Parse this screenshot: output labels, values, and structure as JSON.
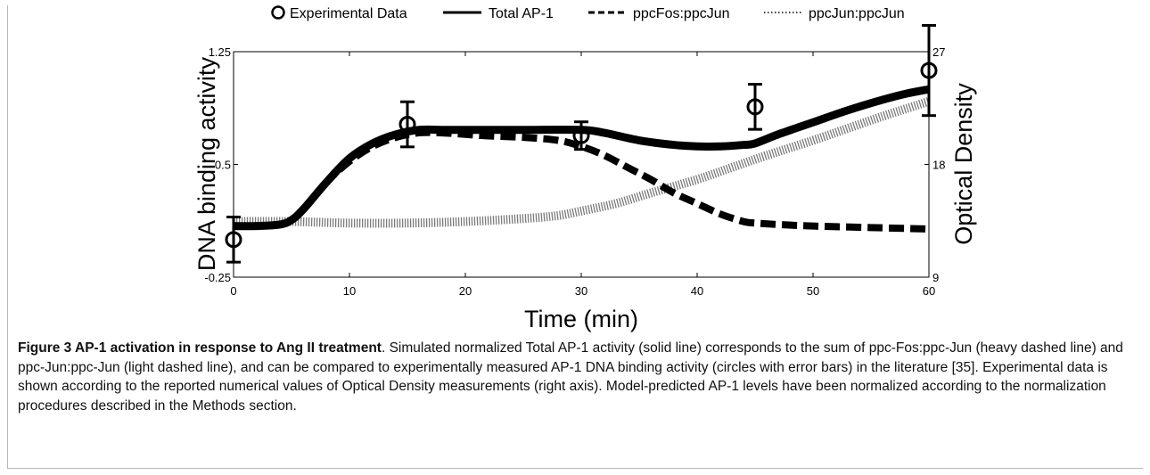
{
  "chart_data": {
    "type": "line",
    "xlabel": "Time (min)",
    "ylabel": "DNA binding activity",
    "y2label": "Optical Density",
    "xlim": [
      0,
      60
    ],
    "ylim": [
      -0.25,
      1.25
    ],
    "y2lim": [
      9,
      27
    ],
    "x_ticks": [
      0,
      10,
      20,
      30,
      40,
      50,
      60
    ],
    "y_ticks": [
      -0.25,
      0.5,
      1.25
    ],
    "y2_ticks": [
      9,
      18,
      27
    ],
    "legend_position": "top",
    "legend": [
      "Experimental Data",
      "Total AP-1",
      "ppcFos:ppcJun",
      "ppcJun:ppcJun"
    ],
    "series": [
      {
        "name": "Total AP-1",
        "style": "solid",
        "x": [
          0,
          2,
          4,
          5,
          6,
          8,
          10,
          12,
          14,
          16,
          18,
          20,
          25,
          30,
          32,
          35,
          38,
          40,
          42,
          44,
          45,
          47,
          50,
          53,
          56,
          58,
          60
        ],
        "y": [
          0.09,
          0.09,
          0.1,
          0.13,
          0.2,
          0.38,
          0.54,
          0.64,
          0.7,
          0.73,
          0.73,
          0.73,
          0.73,
          0.73,
          0.71,
          0.66,
          0.63,
          0.62,
          0.62,
          0.63,
          0.64,
          0.7,
          0.78,
          0.86,
          0.93,
          0.97,
          1.0
        ]
      },
      {
        "name": "ppcFos:ppcJun",
        "style": "dashed",
        "x": [
          0,
          2,
          4,
          5,
          6,
          8,
          10,
          12,
          14,
          16,
          18,
          20,
          22,
          25,
          28,
          30,
          32,
          34,
          36,
          38,
          40,
          42,
          44,
          45,
          47,
          50,
          55,
          60
        ],
        "y": [
          0.09,
          0.09,
          0.1,
          0.13,
          0.2,
          0.38,
          0.52,
          0.62,
          0.68,
          0.71,
          0.71,
          0.7,
          0.69,
          0.68,
          0.66,
          0.62,
          0.56,
          0.48,
          0.4,
          0.31,
          0.24,
          0.17,
          0.12,
          0.11,
          0.1,
          0.09,
          0.08,
          0.07
        ]
      },
      {
        "name": "ppcJun:ppcJun",
        "style": "dotted",
        "x": [
          0,
          5,
          10,
          15,
          20,
          25,
          28,
          30,
          33,
          36,
          40,
          43,
          46,
          50,
          53,
          56,
          58,
          60
        ],
        "y": [
          0.12,
          0.12,
          0.11,
          0.11,
          0.12,
          0.14,
          0.16,
          0.19,
          0.24,
          0.31,
          0.4,
          0.48,
          0.56,
          0.66,
          0.74,
          0.82,
          0.87,
          0.92
        ]
      }
    ],
    "experimental_data": {
      "name": "Experimental Data",
      "axis": "right",
      "x": [
        0,
        15,
        30,
        45,
        60
      ],
      "y": [
        12.0,
        21.2,
        20.3,
        22.6,
        25.5
      ],
      "err": [
        1.8,
        1.8,
        1.1,
        1.8,
        3.6
      ]
    }
  },
  "caption": {
    "lead": "Figure 3 AP-1 activation in response to Ang II treatment",
    "body": ". Simulated normalized Total AP-1 activity (solid line) corresponds to the sum of ppc-Fos:ppc-Jun (heavy dashed line) and ppc-Jun:ppc-Jun (light dashed line), and can be compared to experimentally measured AP-1 DNA binding activity (circles with error bars) in the literature [35]. Experimental data is shown according to the reported numerical values of Optical Density measurements (right axis). Model-predicted AP-1 levels have been normalized according to the normalization procedures described in the Methods section."
  }
}
